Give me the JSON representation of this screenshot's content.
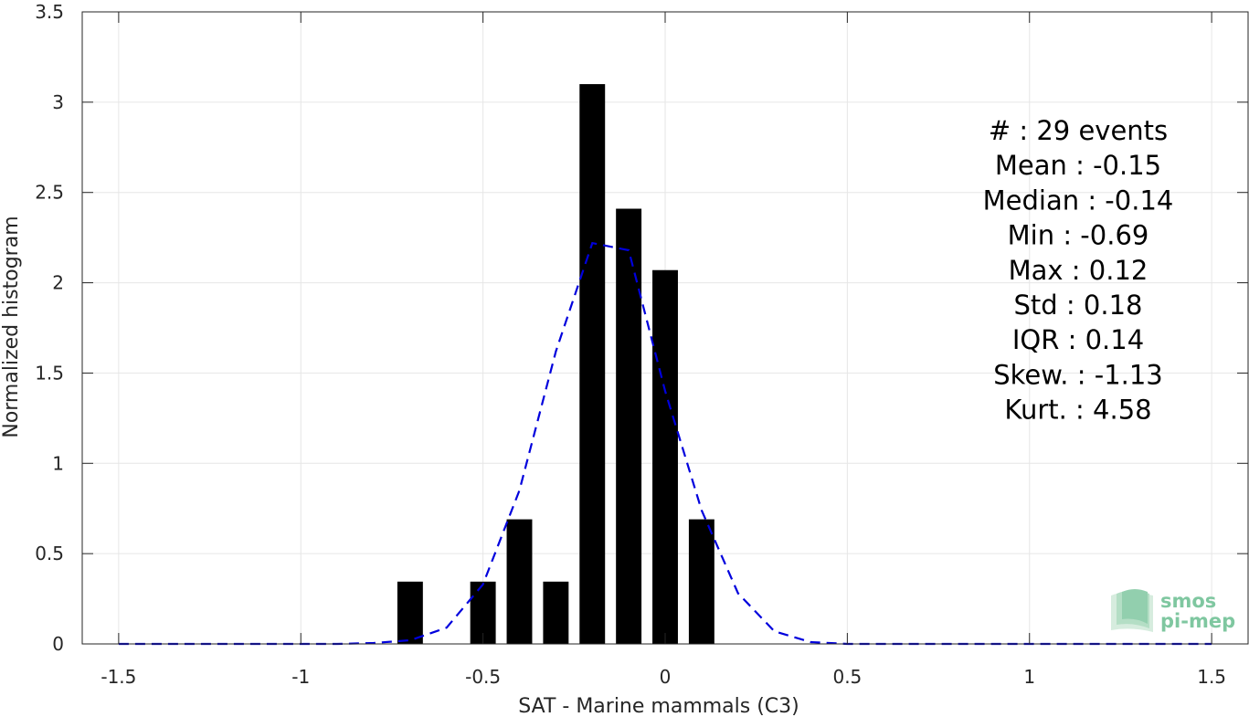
{
  "chart_data": {
    "type": "bar",
    "xlabel": "SAT - Marine mammals (C3)",
    "ylabel": "Normalized histogram",
    "xlim": [
      -1.6,
      1.6
    ],
    "ylim": [
      0,
      3.5
    ],
    "xticks": [
      -1.5,
      -1,
      -0.5,
      0,
      0.5,
      1,
      1.5
    ],
    "xtick_labels": [
      "-1.5",
      "-1",
      "-0.5",
      "0",
      "0.5",
      "1",
      "1.5"
    ],
    "yticks": [
      0,
      0.5,
      1,
      1.5,
      2,
      2.5,
      3,
      3.5
    ],
    "ytick_labels": [
      "0",
      "0.5",
      "1",
      "1.5",
      "2",
      "2.5",
      "3",
      "3.5"
    ],
    "grid": true,
    "bar_width": 0.07,
    "bars": {
      "x": [
        -0.7,
        -0.5,
        -0.4,
        -0.3,
        -0.2,
        -0.1,
        0.0,
        0.1
      ],
      "values": [
        0.345,
        0.345,
        0.69,
        0.345,
        3.1,
        2.41,
        2.07,
        0.69
      ],
      "color": "#000000"
    },
    "fit_curve": {
      "style": "dashed",
      "color": "#0000dd",
      "x": [
        -1.5,
        -1.4,
        -1.3,
        -1.2,
        -1.1,
        -1.0,
        -0.9,
        -0.8,
        -0.7,
        -0.6,
        -0.5,
        -0.4,
        -0.3,
        -0.2,
        -0.1,
        0.0,
        0.1,
        0.2,
        0.3,
        0.4,
        0.5,
        0.6,
        0.7,
        0.8,
        0.9,
        1.0,
        1.1,
        1.2,
        1.3,
        1.4,
        1.5
      ],
      "y": [
        0,
        0,
        0,
        0,
        0,
        0,
        0,
        0.005,
        0.02,
        0.09,
        0.33,
        0.85,
        1.62,
        2.22,
        2.18,
        1.4,
        0.74,
        0.28,
        0.07,
        0.01,
        0,
        0,
        0,
        0,
        0,
        0,
        0,
        0,
        0,
        0,
        0
      ]
    },
    "annotations": [
      "#  : 29 events",
      "Mean : -0.15",
      "Median : -0.14",
      "Min : -0.69",
      "Max : 0.12",
      "Std : 0.18",
      "IQR : 0.14",
      "Skew. : -1.13",
      "Kurt. : 4.58"
    ]
  },
  "logo": {
    "line1": "smos",
    "line2": "pi-mep",
    "color": "#7fc7a0"
  }
}
